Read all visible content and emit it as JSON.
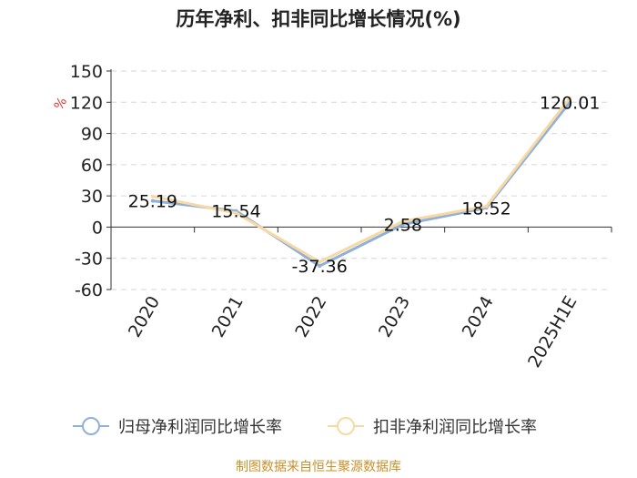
{
  "chart_data": {
    "type": "line",
    "title": "历年净利、扣非同比增长情况(%)",
    "ylabel": "%",
    "categories": [
      "2020",
      "2021",
      "2022",
      "2023",
      "2024",
      "2025H1E"
    ],
    "series": [
      {
        "name": "归母净利润同比增长率",
        "values": [
          25.19,
          15.54,
          -37.36,
          2.58,
          18.52,
          120.01
        ],
        "color": "#8fb0d8"
      },
      {
        "name": "扣非净利润同比增长率",
        "values": [
          29.5,
          13.5,
          -33.5,
          5.5,
          20.0,
          124.0
        ],
        "color": "#f8d9a4"
      }
    ],
    "data_labels": [
      "25.19",
      "15.54",
      "-37.36",
      "2.58",
      "18.52",
      "120.01"
    ],
    "yticks": [
      150,
      120,
      90,
      60,
      30,
      0,
      -30,
      -60
    ],
    "ylim": [
      -60,
      150
    ],
    "grid": true,
    "legend_position": "bottom"
  },
  "source": "制图数据来自恒生聚源数据库"
}
